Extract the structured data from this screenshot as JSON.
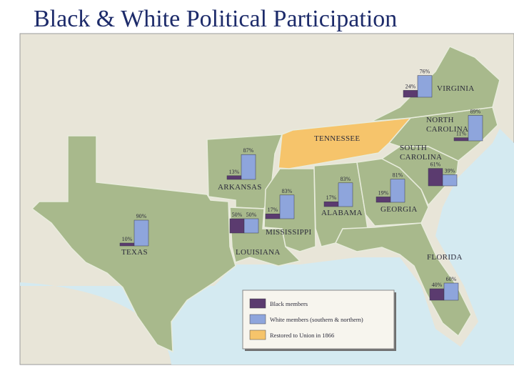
{
  "title": "Black & White Political Participation",
  "states": [
    {
      "name": [
        "VIRGINIA"
      ],
      "values": [
        24,
        76
      ],
      "value_labels": [
        "24%",
        "76%"
      ]
    },
    {
      "name": [
        "NORTH",
        "CAROLINA"
      ],
      "values": [
        11,
        89
      ],
      "value_labels": [
        "11%",
        "89%"
      ]
    },
    {
      "name": [
        "SOUTH",
        "CAROLINA"
      ],
      "values": [
        61,
        39
      ],
      "value_labels": [
        "61%",
        "39%"
      ]
    },
    {
      "name": [
        "GEORGIA"
      ],
      "values": [
        19,
        81
      ],
      "value_labels": [
        "19%",
        "81%"
      ]
    },
    {
      "name": [
        "ALABAMA"
      ],
      "values": [
        17,
        83
      ],
      "value_labels": [
        "17%",
        "83%"
      ]
    },
    {
      "name": [
        "MISSISSIPPI"
      ],
      "values": [
        17,
        83
      ],
      "value_labels": [
        "17%",
        "83%"
      ]
    },
    {
      "name": [
        "LOUISIANA"
      ],
      "values": [
        50,
        50
      ],
      "value_labels": [
        "50%",
        "50%"
      ]
    },
    {
      "name": [
        "ARKANSAS"
      ],
      "values": [
        13,
        87
      ],
      "value_labels": [
        "13%",
        "87%"
      ]
    },
    {
      "name": [
        "TEXAS"
      ],
      "values": [
        10,
        90
      ],
      "value_labels": [
        "10%",
        "90%"
      ]
    },
    {
      "name": [
        "FLORIDA"
      ],
      "values": [
        40,
        60
      ],
      "value_labels": [
        "40%",
        "60%"
      ]
    },
    {
      "name": [
        "TENNESSEE"
      ]
    }
  ],
  "legend": [
    {
      "label": "Black members",
      "color": "#5b3b6f"
    },
    {
      "label": "White members (southern & northern)",
      "color": "#8ea5dc"
    },
    {
      "label": "Restored to Union in 1866",
      "color": "#f6c46b"
    }
  ]
}
